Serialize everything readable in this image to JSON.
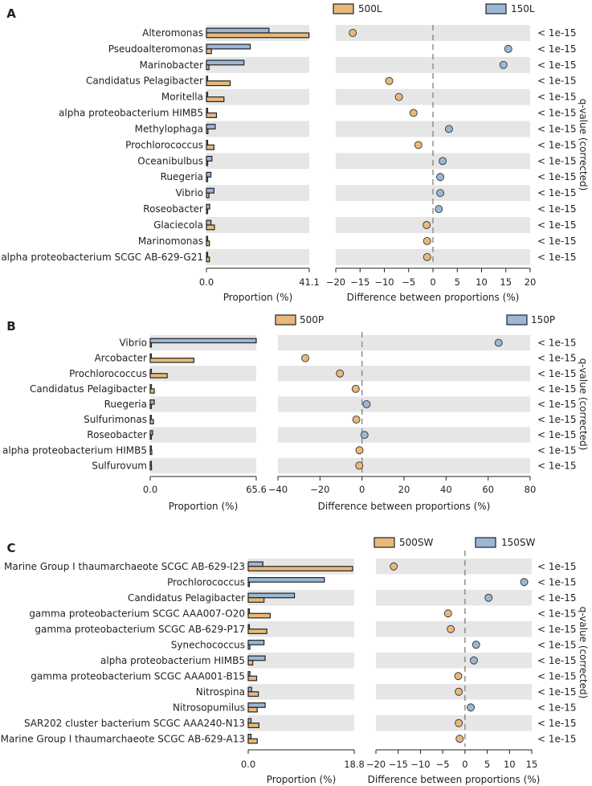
{
  "figure": {
    "qvalue_axis_label": "q-value (corrected)"
  },
  "colors": {
    "orange": "#e8b97a",
    "blue": "#9cb6d6"
  },
  "chart_data": [
    {
      "panel": "A",
      "type": "bar",
      "legend": [
        "500L",
        "150L"
      ],
      "prop_max": 41.1,
      "prop_ticks": [
        "0.0",
        "41.1"
      ],
      "prop_xlabel": "Proportion (%)",
      "diff_range": [
        -20,
        20
      ],
      "diff_ticks": [
        -20,
        -15,
        -10,
        -5,
        0,
        5,
        10,
        15,
        20
      ],
      "diff_xlabel": "Difference between proportions (%)",
      "categories": [
        "Alteromonas",
        "Pseudoalteromonas",
        "Marinobacter",
        "Candidatus Pelagibacter",
        "Moritella",
        "alpha proteobacterium HIMB5",
        "Methylophaga",
        "Prochlorococcus",
        "Oceanibulbus",
        "Ruegeria",
        "Vibrio",
        "Roseobacter",
        "Glaciecola",
        "Marinomonas",
        "alpha proteobacterium SCGC AB-629-G21"
      ],
      "series": [
        {
          "name": "500L",
          "values": [
            41.0,
            2.0,
            1.0,
            9.5,
            7.0,
            4.0,
            0.6,
            3.0,
            0.3,
            0.3,
            1.0,
            0.2,
            3.2,
            1.2,
            1.2
          ]
        },
        {
          "name": "150L",
          "values": [
            25.0,
            17.5,
            15.0,
            0.4,
            0.3,
            0.2,
            3.5,
            0.2,
            2.2,
            1.8,
            3.0,
            1.3,
            1.8,
            0.2,
            0.2
          ]
        }
      ],
      "differences": [
        -16.5,
        15.5,
        14.5,
        -9.0,
        -7.0,
        -4.0,
        3.3,
        -3.0,
        2.0,
        1.5,
        1.5,
        1.2,
        -1.3,
        -1.2,
        -1.2
      ],
      "qvalues": [
        "< 1e-15",
        "< 1e-15",
        "< 1e-15",
        "< 1e-15",
        "< 1e-15",
        "< 1e-15",
        "< 1e-15",
        "< 1e-15",
        "< 1e-15",
        "< 1e-15",
        "< 1e-15",
        "< 1e-15",
        "< 1e-15",
        "< 1e-15",
        "< 1e-15"
      ]
    },
    {
      "panel": "B",
      "type": "bar",
      "legend": [
        "500P",
        "150P"
      ],
      "prop_max": 65.6,
      "prop_ticks": [
        "0.0",
        "65.6"
      ],
      "prop_xlabel": "Proportion (%)",
      "diff_range": [
        -40,
        80
      ],
      "diff_ticks": [
        -40,
        -20,
        0,
        20,
        40,
        60,
        80
      ],
      "diff_xlabel": "Difference between proportions (%)",
      "categories": [
        "Vibrio",
        "Arcobacter",
        "Prochlorococcus",
        "Candidatus Pelagibacter",
        "Ruegeria",
        "Sulfurimonas",
        "Roseobacter",
        "alpha proteobacterium HIMB5",
        "Sulfurovum"
      ],
      "series": [
        {
          "name": "500P",
          "values": [
            0.5,
            27.0,
            10.5,
            2.5,
            0.5,
            2.0,
            0.5,
            1.0,
            0.8
          ]
        },
        {
          "name": "150P",
          "values": [
            65.6,
            0.3,
            0.2,
            0.3,
            2.5,
            0.3,
            1.5,
            0.2,
            0.2
          ]
        }
      ],
      "differences": [
        65.0,
        -27.0,
        -10.5,
        -3.0,
        2.2,
        -2.7,
        1.2,
        -1.2,
        -1.3
      ],
      "qvalues": [
        "< 1e-15",
        "< 1e-15",
        "< 1e-15",
        "< 1e-15",
        "< 1e-15",
        "< 1e-15",
        "< 1e-15",
        "< 1e-15",
        "< 1e-15"
      ]
    },
    {
      "panel": "C",
      "type": "bar",
      "legend": [
        "500SW",
        "150SW"
      ],
      "prop_max": 18.8,
      "prop_ticks": [
        "0.0",
        "18.8"
      ],
      "prop_xlabel": "Proportion (%)",
      "diff_range": [
        -20,
        15
      ],
      "diff_ticks": [
        -20,
        -15,
        -10,
        -5,
        0,
        5,
        10,
        15
      ],
      "diff_xlabel": "Difference between proportions (%)",
      "categories": [
        "Marine Group I thaumarchaeote SCGC AB-629-I23",
        "Prochlorococcus",
        "Candidatus Pelagibacter",
        "gamma proteobacterium SCGC AAA007-O20",
        "gamma proteobacterium SCGC AB-629-P17",
        "Synechococcus",
        "alpha proteobacterium HIMB5",
        "gamma proteobacterium SCGC AAA001-B15",
        "Nitrospina",
        "Nitrosopumilus",
        "SAR202 cluster bacterium SCGC AAA240-N13",
        "Marine Group I thaumarchaeote SCGC AB-629-A13"
      ],
      "series": [
        {
          "name": "500SW",
          "values": [
            18.5,
            0.2,
            2.8,
            3.9,
            3.3,
            0.3,
            0.8,
            1.5,
            1.8,
            1.6,
            1.9,
            1.6
          ]
        },
        {
          "name": "150SW",
          "values": [
            2.6,
            13.5,
            8.2,
            0.2,
            0.2,
            2.8,
            3.0,
            0.3,
            0.6,
            3.0,
            0.5,
            0.5
          ]
        }
      ],
      "differences": [
        -16.0,
        13.3,
        5.3,
        -3.8,
        -3.2,
        2.5,
        2.0,
        -1.5,
        -1.4,
        1.3,
        -1.4,
        -1.2
      ],
      "qvalues": [
        "< 1e-15",
        "< 1e-15",
        "< 1e-15",
        "< 1e-15",
        "< 1e-15",
        "< 1e-15",
        "< 1e-15",
        "< 1e-15",
        "< 1e-15",
        "< 1e-15",
        "< 1e-15",
        "< 1e-15"
      ]
    }
  ]
}
